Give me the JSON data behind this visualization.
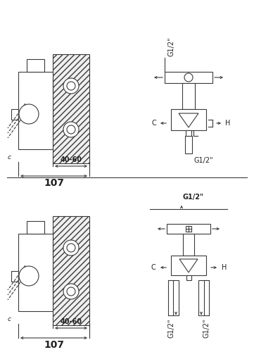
{
  "bg_color": "#ffffff",
  "line_color": "#3a3a3a",
  "text_color": "#222222",
  "hatch_color": "#888888",
  "fs_small": 6.5,
  "fs_mid": 8.0,
  "fs_large": 10.0,
  "top": {
    "label_4060": "40-60",
    "label_107": "107",
    "label_G12_top": "G1/2\"",
    "label_G12_bot": "G1/2\"",
    "label_C": "C",
    "label_H": "H"
  },
  "bot": {
    "label_4060": "40-60",
    "label_107": "107",
    "label_G12_top": "G1/2\"",
    "label_G12_left": "G1/2\"",
    "label_G12_right": "G1/2\"",
    "label_C": "C",
    "label_H": "H"
  }
}
